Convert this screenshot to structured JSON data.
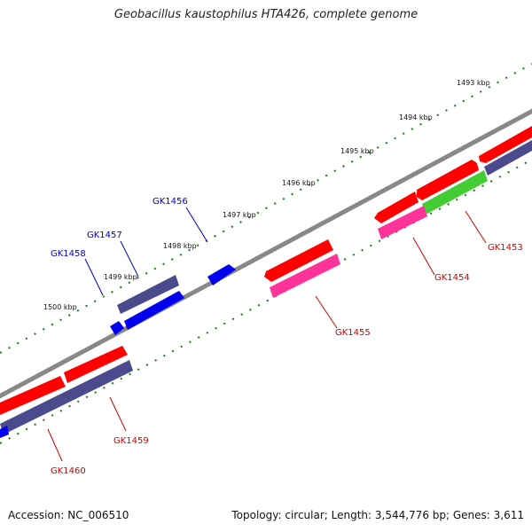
{
  "title": "Geobacillus kaustophilus HTA426, complete genome",
  "footer": {
    "accession": "Accession: NC_006510",
    "summary": "Topology: circular; Length: 3,544,776 bp; Genes: 3,611"
  },
  "ticks": [
    {
      "label": "1493 kbp"
    },
    {
      "label": "1494 kbp"
    },
    {
      "label": "1495 kbp"
    },
    {
      "label": "1496 kbp"
    },
    {
      "label": "1497 kbp"
    },
    {
      "label": "1498 kbp"
    },
    {
      "label": "1499 kbp"
    },
    {
      "label": "1500 kbp"
    }
  ],
  "genes": [
    {
      "name": "GK1453",
      "color": "#d00000"
    },
    {
      "name": "GK1454",
      "color": "#d00000"
    },
    {
      "name": "GK1455",
      "color": "#d00000"
    },
    {
      "name": "GK1456",
      "color": "#0000cc"
    },
    {
      "name": "GK1457",
      "color": "#0000cc"
    },
    {
      "name": "GK1458",
      "color": "#0000cc"
    },
    {
      "name": "GK1459",
      "color": "#d00000"
    },
    {
      "name": "GK1460",
      "color": "#d00000"
    }
  ],
  "colors": {
    "backbone": "#888888",
    "tick": "#1a7a1a",
    "red": "#ff0000",
    "pink": "#ff3399",
    "green": "#44cc33",
    "purple": "#4a4a8c",
    "blue": "#0000ee"
  }
}
